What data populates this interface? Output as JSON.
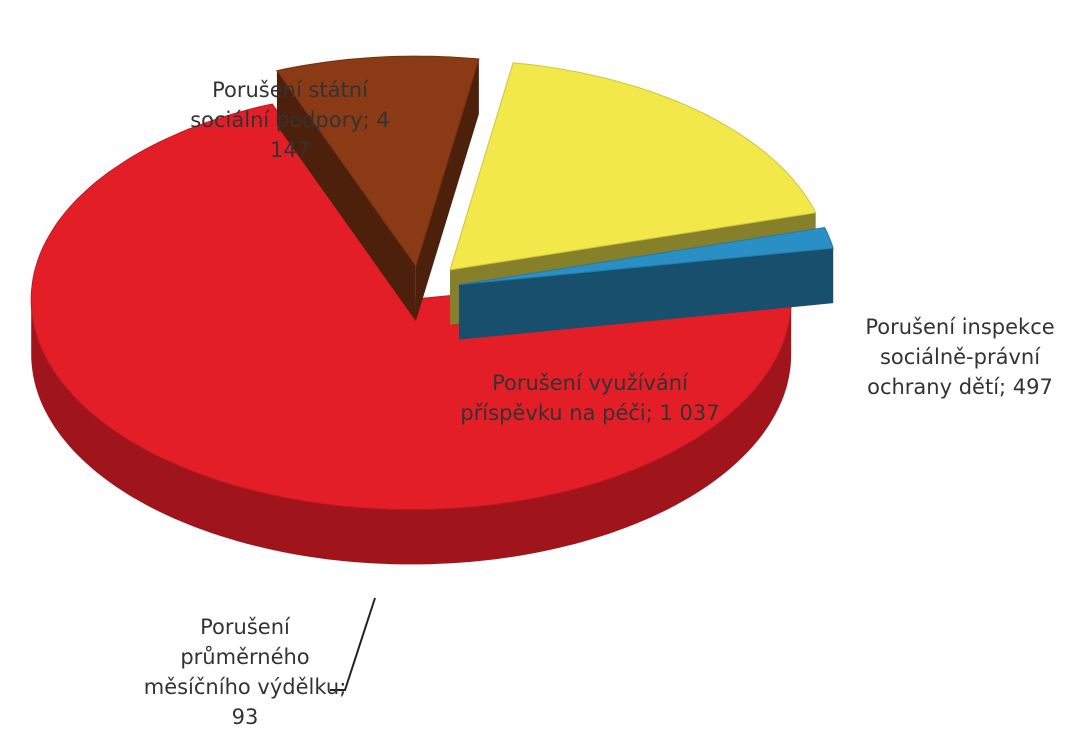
{
  "chart_data": {
    "type": "pie",
    "categories": [
      "Porušení státní sociální podpory",
      "Porušení inspekce sociálně-právní ochrany dětí",
      "Porušení využívání příspěvku na péči",
      "Porušení průměrného měsíčního výdělku"
    ],
    "values": [
      4147,
      497,
      1037,
      93
    ],
    "value_labels": [
      "4 147",
      "497",
      "1 037",
      "93"
    ],
    "label_separator": "; ",
    "colors": [
      "#e41e26",
      "#8a3a14",
      "#f2e84a",
      "#2a8fc4"
    ]
  }
}
